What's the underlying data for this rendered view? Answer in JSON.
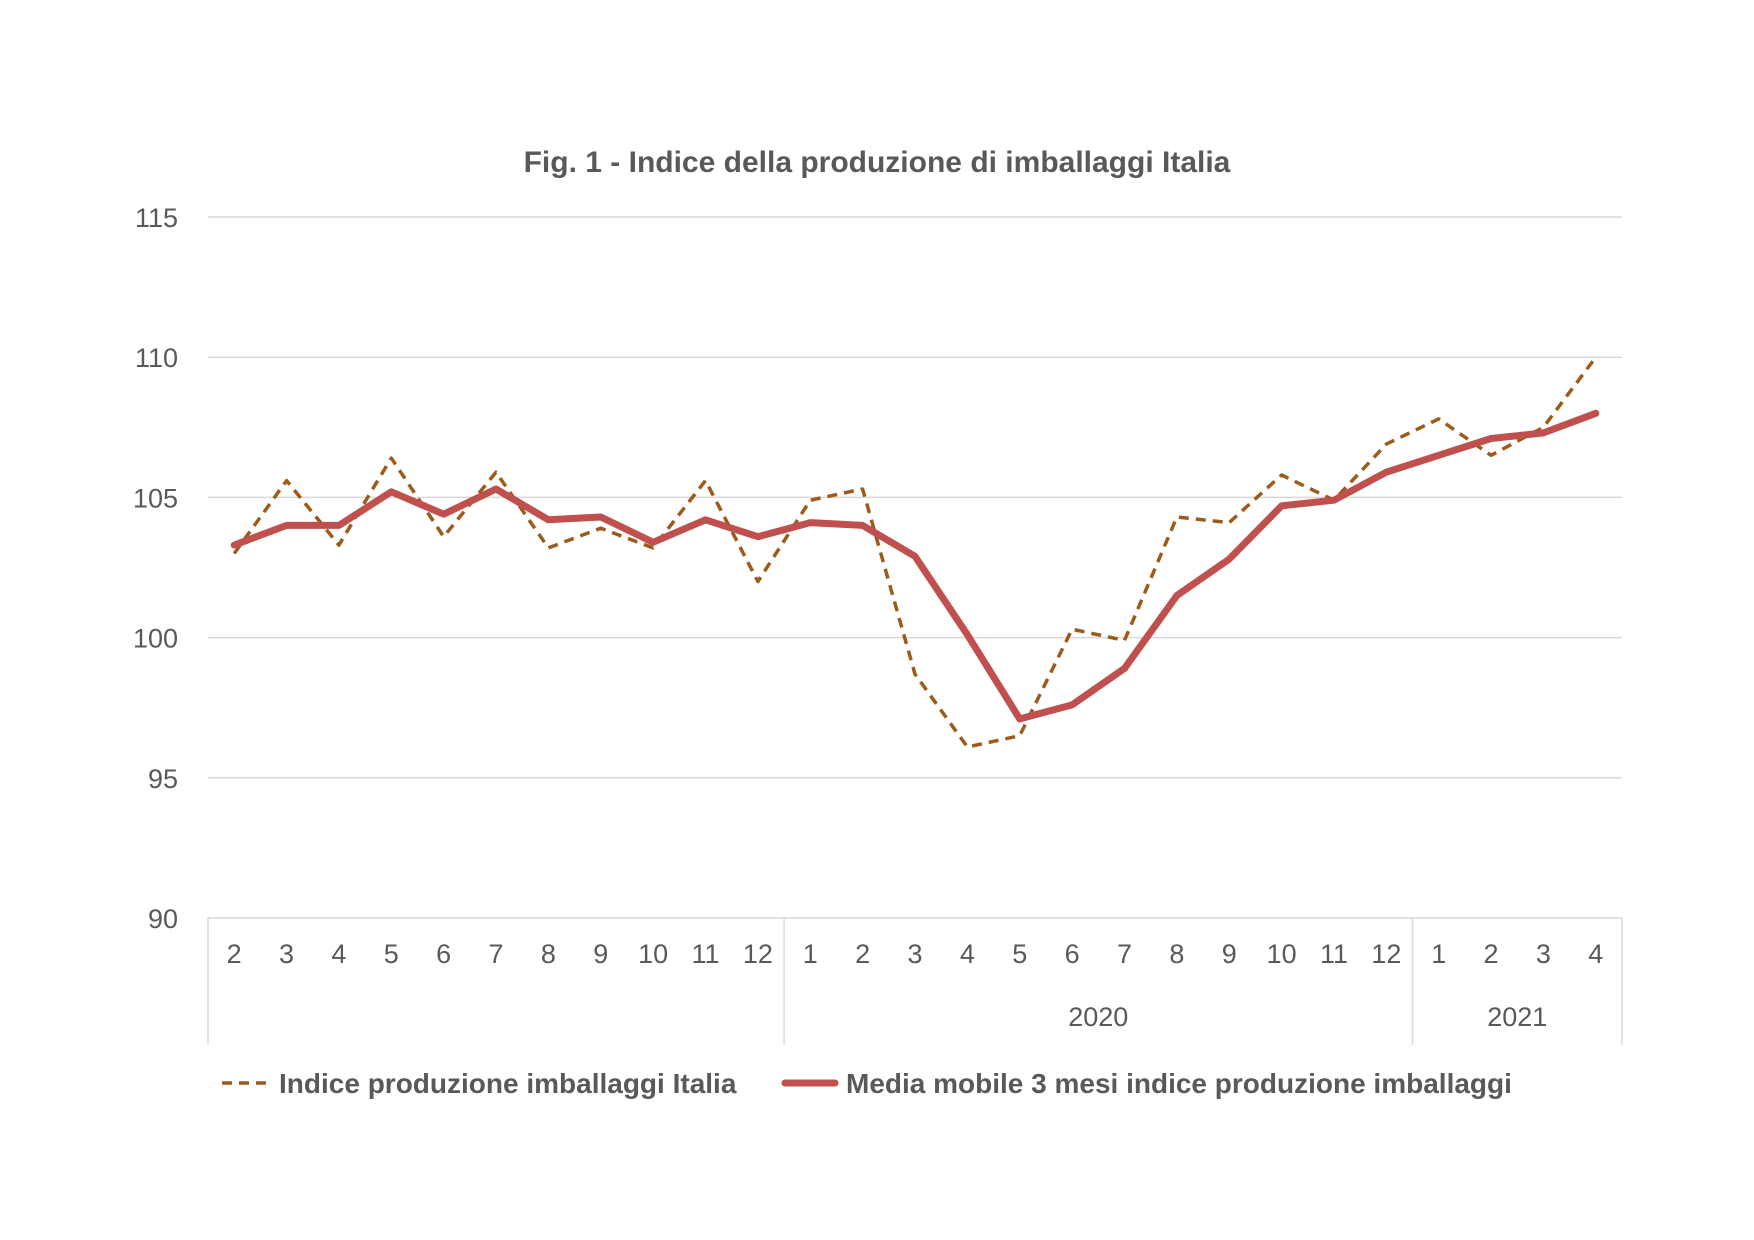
{
  "chart_data": {
    "type": "line",
    "title": "Fig. 1 - Indice della produzione di imballaggi Italia",
    "xlabel": "",
    "ylabel": "",
    "ylim": [
      90,
      115
    ],
    "yticks": [
      90,
      95,
      100,
      105,
      110,
      115
    ],
    "grid": true,
    "legend_position": "bottom",
    "categories": [
      "2",
      "3",
      "4",
      "5",
      "6",
      "7",
      "8",
      "9",
      "10",
      "11",
      "12",
      "1",
      "2",
      "3",
      "4",
      "5",
      "6",
      "7",
      "8",
      "9",
      "10",
      "11",
      "12",
      "1",
      "2",
      "3",
      "4"
    ],
    "year_groups": [
      {
        "label": "",
        "count": 11
      },
      {
        "label": "2020",
        "count": 12
      },
      {
        "label": "2021",
        "count": 4
      }
    ],
    "series": [
      {
        "name": "Indice produzione imballaggi Italia",
        "color": "#9c5b1a",
        "style": "dashed",
        "values": [
          103.0,
          105.6,
          103.3,
          106.4,
          103.6,
          105.9,
          103.2,
          103.9,
          103.2,
          105.6,
          102.0,
          104.9,
          105.3,
          98.7,
          96.1,
          96.5,
          100.3,
          99.9,
          104.3,
          104.1,
          105.8,
          104.9,
          106.9,
          107.8,
          106.5,
          107.5,
          110.0
        ]
      },
      {
        "name": "Media mobile 3 mesi indice produzione imballaggi",
        "color": "#c0504d",
        "style": "solid",
        "values": [
          103.3,
          104.0,
          104.0,
          105.2,
          104.4,
          105.3,
          104.2,
          104.3,
          103.4,
          104.2,
          103.6,
          104.1,
          104.0,
          102.9,
          100.1,
          97.1,
          97.6,
          98.9,
          101.5,
          102.8,
          104.7,
          104.9,
          105.9,
          106.5,
          107.1,
          107.3,
          108.0
        ]
      }
    ]
  }
}
